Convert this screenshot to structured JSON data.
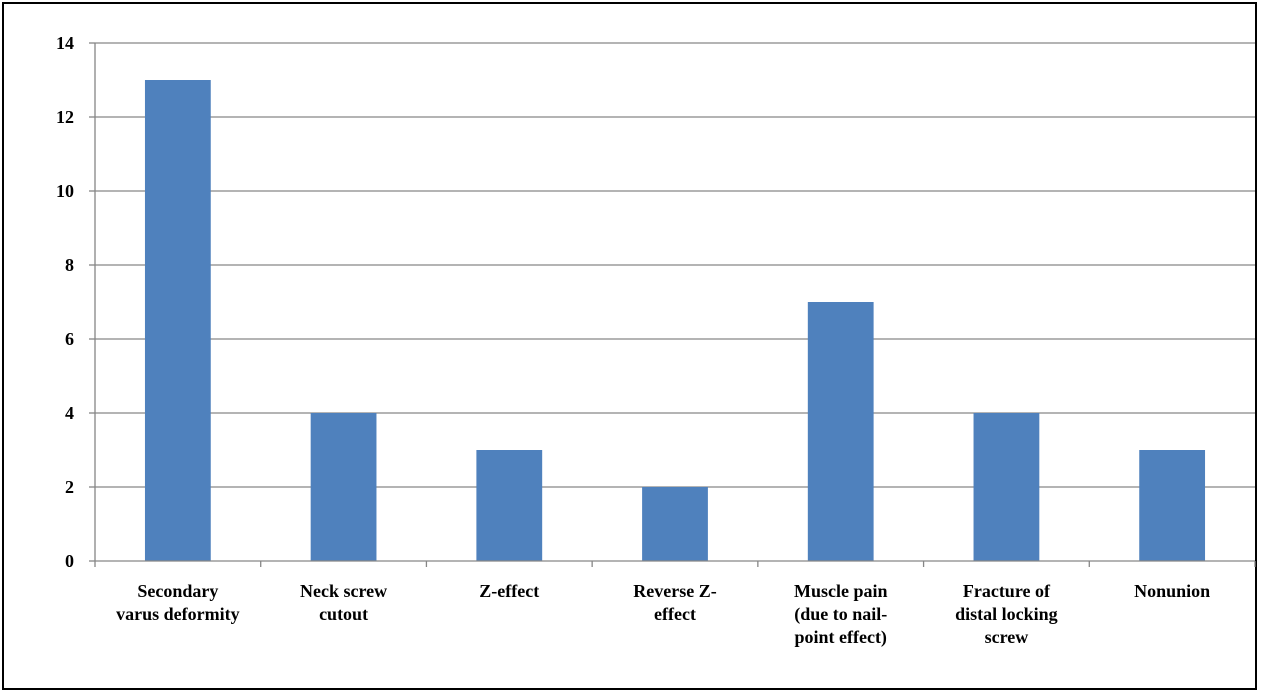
{
  "chart_data": {
    "type": "bar",
    "categories": [
      [
        "Secondary",
        "varus deformity"
      ],
      [
        "Neck screw",
        "cutout"
      ],
      [
        "Z-effect"
      ],
      [
        "Reverse Z-",
        "effect"
      ],
      [
        "Muscle pain",
        "(due to nail-",
        "point effect)"
      ],
      [
        "Fracture of",
        "distal locking",
        "screw"
      ],
      [
        "Nonunion"
      ]
    ],
    "values": [
      13,
      4,
      3,
      2,
      7,
      4,
      3
    ],
    "ylim": [
      0,
      14
    ],
    "yticks": [
      0,
      2,
      4,
      6,
      8,
      10,
      12,
      14
    ],
    "grid": true,
    "legend": "none",
    "bar_color": "#4f81bd",
    "grid_color": "#868686",
    "axis_color": "#868686"
  }
}
